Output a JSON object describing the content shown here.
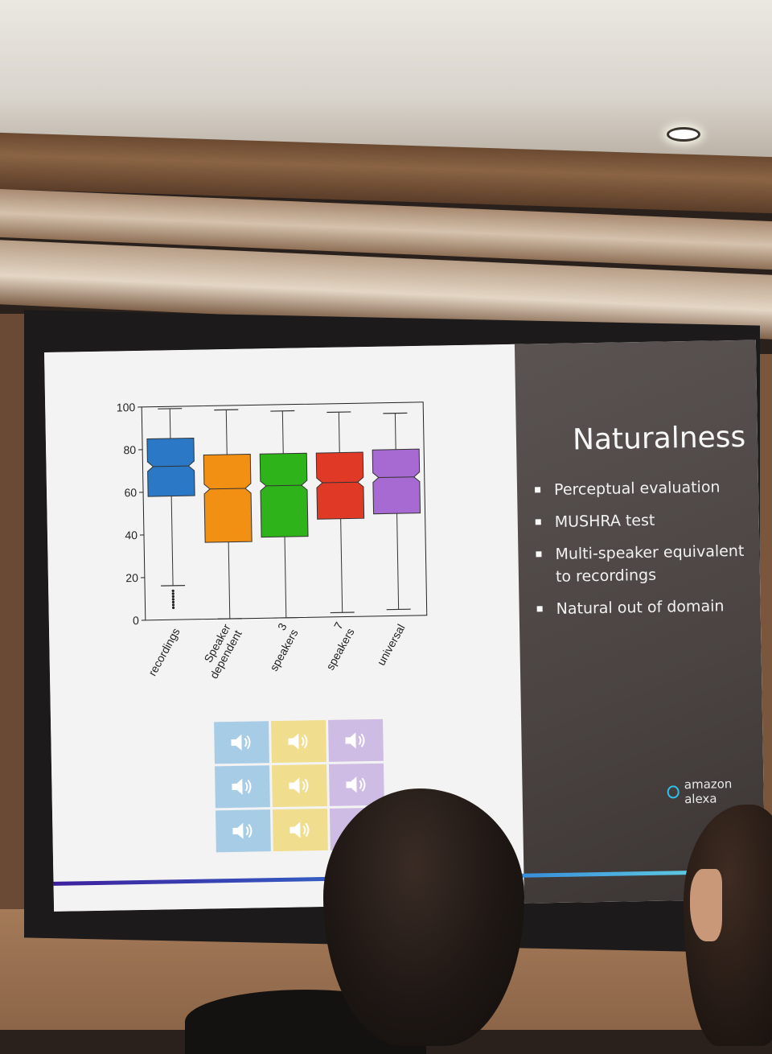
{
  "slide": {
    "title": "Naturalness",
    "bullets": [
      "Perceptual evaluation",
      "MUSHRA test",
      "Multi-speaker equivalent to recordings",
      "Natural out of domain"
    ],
    "footer_logo": "amazon alexa"
  },
  "chart_data": {
    "type": "boxplot",
    "title": "",
    "xlabel": "",
    "ylabel": "",
    "ylim": [
      0,
      100
    ],
    "yticks": [
      "0",
      "20",
      "40",
      "60",
      "80",
      "100"
    ],
    "categories": [
      "recordings",
      "Speaker dependent",
      "3 speakers",
      "7 speakers",
      "universal"
    ],
    "boxes": [
      {
        "name": "recordings",
        "whisker_low": 16,
        "q1": 58,
        "median": 72,
        "q3": 85,
        "whisker_high": 99,
        "color": "#2a78c6"
      },
      {
        "name": "Speaker dependent",
        "whisker_low": 0,
        "q1": 36,
        "median": 61,
        "q3": 77,
        "whisker_high": 98,
        "color": "#f29014"
      },
      {
        "name": "3 speakers",
        "whisker_low": 0,
        "q1": 38,
        "median": 62,
        "q3": 77,
        "whisker_high": 97,
        "color": "#2eb31a"
      },
      {
        "name": "7 speakers",
        "whisker_low": 2,
        "q1": 46,
        "median": 63,
        "q3": 77,
        "whisker_high": 96,
        "color": "#e03a26"
      },
      {
        "name": "universal",
        "whisker_low": 3,
        "q1": 48,
        "median": 65,
        "q3": 78,
        "whisker_high": 95,
        "color": "#a66ad2"
      }
    ]
  },
  "audio_grid": {
    "columns": [
      "#a7cde6",
      "#f1dd8e",
      "#cfbce4"
    ],
    "rows": 3,
    "icon": "speaker-icon"
  }
}
